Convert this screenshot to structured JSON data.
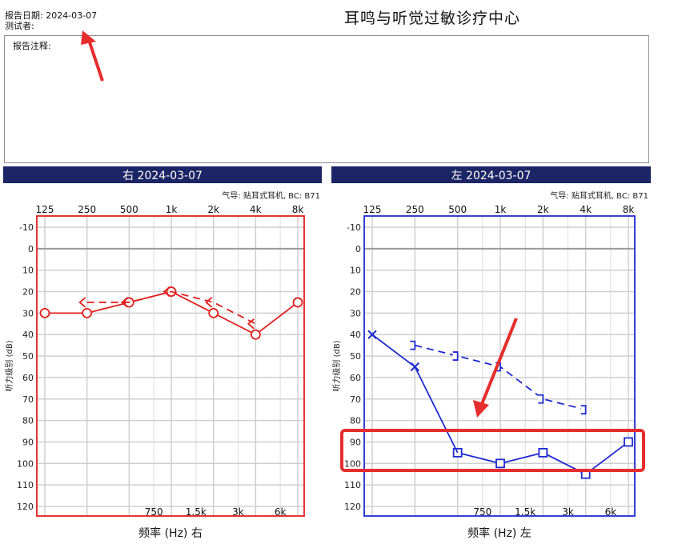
{
  "header": {
    "report_date": "报告日期: 2024-03-07",
    "tester": "测试者:",
    "center_title": "耳鸣与听觉过敏诊疗中心",
    "notes_label": "报告注释:"
  },
  "colors": {
    "right_ear": "#e0201e",
    "left_ear": "#1f2bd0",
    "bar_bg": "#1c2565",
    "highlight": "#e62d2d"
  },
  "chart_data": [
    {
      "type": "line",
      "ear_title": "右 2024-03-07",
      "transducer_note": "气导: 贴耳式耳机, BC: B71",
      "frame_color": "#e0201e",
      "x_scale": "log",
      "xlim": [
        125,
        8000
      ],
      "ylim": [
        -15,
        125
      ],
      "y_ticks": [
        -10,
        0,
        10,
        20,
        30,
        40,
        50,
        60,
        70,
        80,
        90,
        100,
        110,
        120
      ],
      "top_ticks": [
        {
          "f": 125,
          "label": "125"
        },
        {
          "f": 250,
          "label": "250"
        },
        {
          "f": 500,
          "label": "500"
        },
        {
          "f": 1000,
          "label": "1k"
        },
        {
          "f": 2000,
          "label": "2k"
        },
        {
          "f": 4000,
          "label": "4k"
        },
        {
          "f": 8000,
          "label": "8k"
        }
      ],
      "bottom_ticks": [
        {
          "f": 750,
          "label": "750"
        },
        {
          "f": 1500,
          "label": "1.5k"
        },
        {
          "f": 3000,
          "label": "3k"
        },
        {
          "f": 6000,
          "label": "6k"
        }
      ],
      "ylabel": "听力级别 (dB)",
      "xlabel": "频率 (Hz) 右",
      "series": [
        {
          "key": "ac",
          "marker": "circle",
          "dash": false,
          "x": [
            125,
            250,
            500,
            1000,
            2000,
            4000,
            8000
          ],
          "y": [
            30,
            30,
            25,
            20,
            30,
            40,
            25
          ]
        },
        {
          "key": "bc",
          "marker": "bc-right",
          "dash": true,
          "x": [
            250,
            500,
            1000,
            2000,
            4000
          ],
          "y": [
            25,
            25,
            20,
            25,
            35
          ]
        }
      ]
    },
    {
      "type": "line",
      "ear_title": "左 2024-03-07",
      "transducer_note": "气导: 贴耳式耳机, BC: B71",
      "frame_color": "#1f2bd0",
      "x_scale": "log",
      "xlim": [
        125,
        8000
      ],
      "ylim": [
        -15,
        125
      ],
      "y_ticks": [
        -10,
        0,
        10,
        20,
        30,
        40,
        50,
        60,
        70,
        80,
        90,
        100,
        110,
        120
      ],
      "top_ticks": [
        {
          "f": 125,
          "label": "125"
        },
        {
          "f": 250,
          "label": "250"
        },
        {
          "f": 500,
          "label": "500"
        },
        {
          "f": 1000,
          "label": "1k"
        },
        {
          "f": 2000,
          "label": "2k"
        },
        {
          "f": 4000,
          "label": "4k"
        },
        {
          "f": 8000,
          "label": "8k"
        }
      ],
      "bottom_ticks": [
        {
          "f": 750,
          "label": "750"
        },
        {
          "f": 1500,
          "label": "1.5k"
        },
        {
          "f": 3000,
          "label": "3k"
        },
        {
          "f": 6000,
          "label": "6k"
        }
      ],
      "ylabel": "听力级别 (dB)",
      "xlabel": "频率 (Hz) 左",
      "series": [
        {
          "key": "ac",
          "marker": "cross",
          "dash": false,
          "x": [
            125,
            250
          ],
          "y": [
            40,
            55
          ]
        },
        {
          "key": "ac-masked",
          "marker": "square",
          "dash": false,
          "x": [
            500,
            1000,
            2000,
            4000,
            8000
          ],
          "y": [
            95,
            100,
            95,
            105,
            90
          ]
        },
        {
          "key": "ac-link",
          "marker": "none",
          "dash": false,
          "x": [
            250,
            500
          ],
          "y": [
            55,
            95
          ]
        },
        {
          "key": "bc-masked",
          "marker": "bracket-left",
          "dash": true,
          "x": [
            250,
            500,
            1000,
            2000,
            4000
          ],
          "y": [
            45,
            50,
            55,
            70,
            75
          ]
        }
      ]
    }
  ]
}
